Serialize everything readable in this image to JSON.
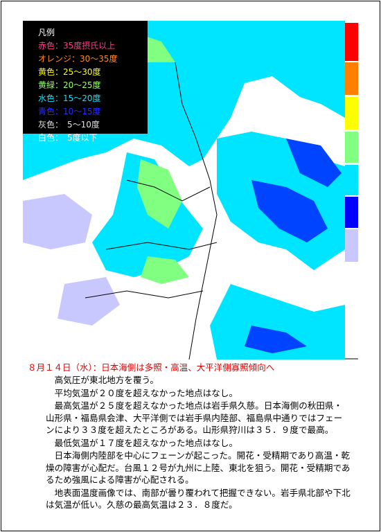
{
  "legend": {
    "title": "凡例",
    "items": [
      "赤色：35度摂氏以上",
      "オレンジ：30～35度",
      "黄色：25～30度",
      "黄緑：20～25度",
      "水色：15～20度",
      "青色：10～15度",
      "灰色：　5～10度",
      "白色：　5度以下"
    ]
  },
  "headline": "８月１４日（水）：日本海側は多照・高温、大平洋側寡照傾向へ",
  "paragraphs": [
    "高気圧が東北地方を覆う。",
    "平均気温が２０度を超えなかった地点はなし。",
    "最高気温が２５度を超えなかった地点は岩手県久慈。日本海側の秋田県・山形県・福島県会津、大平洋側では岩手県内陸部、福島県中通りではフェーンにより３３度を超えたところがある。山形県狩川は３５．９度で最高。",
    "最低気温が１７度を超えなかった地点はなし。",
    "日本海側内陸部を中心にフェーンが起こった。開花・受精期であり高温・乾燥の障害が心配だ。台風１２号が九州に上陸、東北を狙う。開花・受精期であるため強風による障害が心配される。",
    "地表面温度画像では、南部が曇り覆われて把握できない。岩手県北部や下北は気温が低い。久慈の最高気温は２３．８度だ。"
  ]
}
